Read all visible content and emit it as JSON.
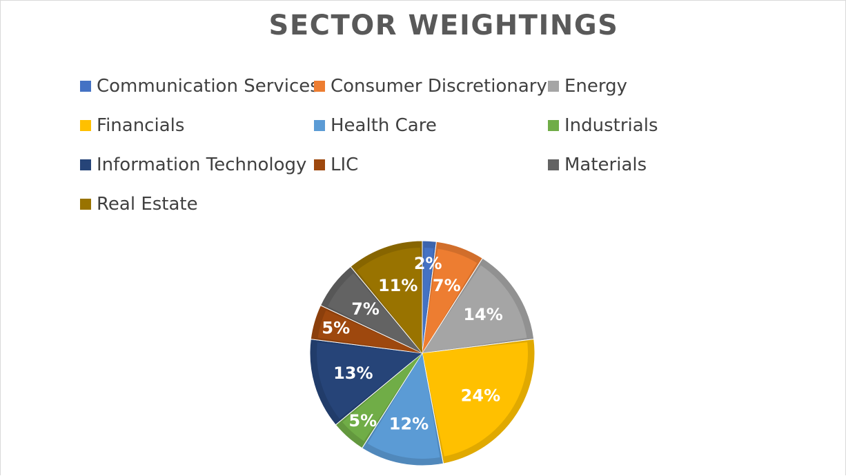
{
  "chart_data": {
    "type": "pie",
    "title": "SECTOR WEIGHTINGS",
    "categories": [
      "Communication Services",
      "Consumer Discretionary",
      "Energy",
      "Financials",
      "Health Care",
      "Industrials",
      "Information Technology",
      "LIC",
      "Materials",
      "Real Estate"
    ],
    "values": [
      2,
      7,
      14,
      24,
      12,
      5,
      13,
      5,
      7,
      11
    ],
    "labels": [
      "2%",
      "7%",
      "14%",
      "24%",
      "12%",
      "5%",
      "13%",
      "5%",
      "7%",
      "11%"
    ],
    "colors": [
      "#4472C4",
      "#ED7D31",
      "#A5A5A5",
      "#FFC000",
      "#5B9BD5",
      "#70AD47",
      "#264478",
      "#9E480E",
      "#636363",
      "#997300"
    ],
    "legend_position": "top",
    "start_angle_deg": 0,
    "direction": "clockwise"
  }
}
